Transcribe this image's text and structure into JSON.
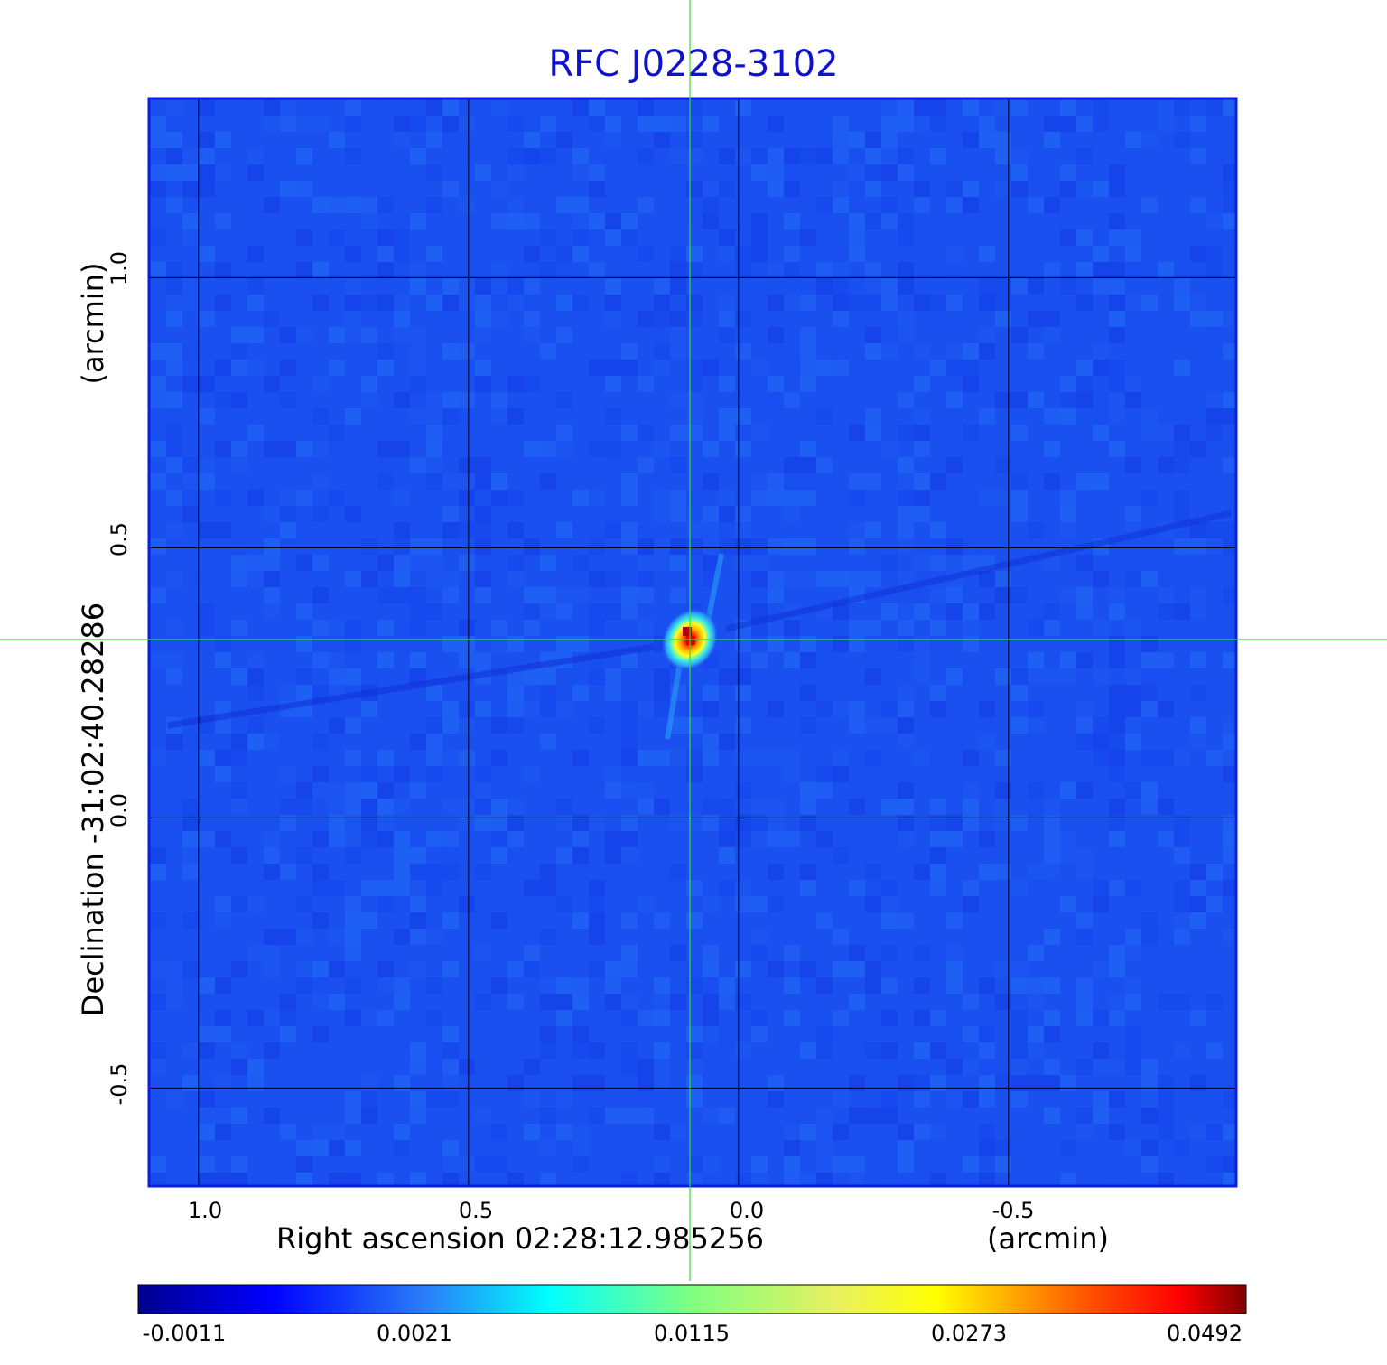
{
  "chart_data": {
    "type": "heatmap",
    "title": "RFC J0228-3102",
    "xlabel": "Right ascension  02:28:12.985256",
    "xunit": "(arcmin)",
    "ylabel": "Declination  -31:02:40.28286",
    "yunit": "(arcmin)",
    "x_ticks": [
      "1.0",
      "0.5",
      "0.0",
      "-0.5"
    ],
    "x_tick_values": [
      1.0,
      0.5,
      0.0,
      -0.5
    ],
    "y_ticks": [
      "1.0",
      "0.5",
      "0.0",
      "-0.5"
    ],
    "y_tick_values": [
      1.0,
      0.5,
      0.0,
      -0.5
    ],
    "xlim": [
      1.09,
      -0.92
    ],
    "ylim": [
      -0.68,
      1.33
    ],
    "grid": true,
    "crosshair": {
      "x": 0.09,
      "y": 0.33,
      "color": "#33dd33"
    },
    "source_peak": {
      "x": 0.09,
      "y": 0.33,
      "value": 0.0492
    },
    "colorbar": {
      "colormap": "jet",
      "ticks": [
        "-0.0011",
        "0.0021",
        "0.0115",
        "0.0273",
        "0.0492"
      ]
    }
  },
  "colors": {
    "title": "#1010d0",
    "background_field": "#1a4ff0",
    "frame": "#0a1ee0",
    "grid": "#000000"
  }
}
